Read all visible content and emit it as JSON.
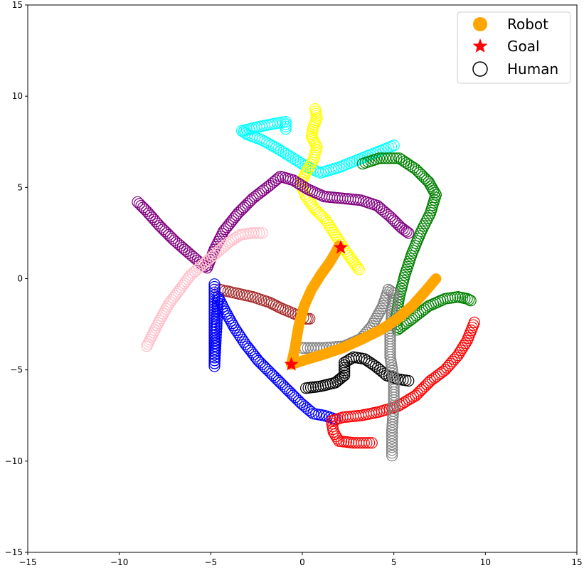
{
  "chart_data": {
    "type": "scatter",
    "xlim": [
      -15,
      15
    ],
    "ylim": [
      -15,
      15
    ],
    "xticks": [
      -15,
      -10,
      -5,
      0,
      5,
      10,
      15
    ],
    "yticks": [
      -15,
      -10,
      -5,
      0,
      5,
      10,
      15
    ],
    "tick_labels": [
      "−15",
      "−10",
      "−5",
      "0",
      "5",
      "10",
      "15"
    ],
    "grid": false,
    "legend": {
      "placement": "top-right",
      "entries": [
        {
          "label": "Robot",
          "marker": "filled-circle",
          "color": "#ffa500"
        },
        {
          "label": "Goal",
          "marker": "star",
          "color": "#ff0000"
        },
        {
          "label": "Human",
          "marker": "open-circle",
          "color": "#000000"
        }
      ]
    },
    "robot": {
      "name": "Robot",
      "color": "#ffa500",
      "path": [
        [
          7.3,
          0.0
        ],
        [
          6.8,
          -0.6
        ],
        [
          6.0,
          -1.5
        ],
        [
          5.2,
          -2.2
        ],
        [
          4.3,
          -2.8
        ],
        [
          3.3,
          -3.3
        ],
        [
          2.2,
          -3.8
        ],
        [
          1.0,
          -4.2
        ],
        [
          0.0,
          -4.5
        ],
        [
          -0.6,
          -4.7
        ],
        [
          -0.4,
          -3.8
        ],
        [
          -0.2,
          -2.6
        ],
        [
          0.1,
          -1.5
        ],
        [
          0.5,
          -0.6
        ],
        [
          1.0,
          0.2
        ],
        [
          1.5,
          0.9
        ],
        [
          1.8,
          1.4
        ],
        [
          2.0,
          1.8
        ]
      ]
    },
    "goals": [
      {
        "name": "Goal",
        "x": 2.1,
        "y": 1.7,
        "color": "#ff0000"
      },
      {
        "name": "Goal",
        "x": -0.6,
        "y": -4.7,
        "color": "#ff0000"
      }
    ],
    "humans": [
      {
        "color": "#00ffff",
        "path": [
          [
            5.0,
            7.3
          ],
          [
            4.0,
            6.9
          ],
          [
            3.0,
            6.5
          ],
          [
            2.0,
            6.1
          ],
          [
            1.0,
            5.8
          ],
          [
            0.3,
            6.1
          ],
          [
            -0.5,
            6.6
          ],
          [
            -1.3,
            7.1
          ],
          [
            -2.2,
            7.6
          ],
          [
            -3.0,
            7.9
          ],
          [
            -3.3,
            8.1
          ],
          [
            -2.5,
            8.3
          ],
          [
            -1.5,
            8.5
          ],
          [
            -0.9,
            8.6
          ],
          [
            -0.9,
            8.2
          ]
        ]
      },
      {
        "color": "#ffff00",
        "path": [
          [
            0.7,
            9.3
          ],
          [
            0.8,
            8.8
          ],
          [
            0.6,
            8.3
          ],
          [
            0.5,
            7.8
          ],
          [
            0.8,
            7.2
          ],
          [
            0.6,
            6.5
          ],
          [
            0.2,
            5.8
          ],
          [
            -0.1,
            5.2
          ],
          [
            0.2,
            4.5
          ],
          [
            0.7,
            3.8
          ],
          [
            1.3,
            3.2
          ],
          [
            1.8,
            2.4
          ],
          [
            2.3,
            1.6
          ],
          [
            2.8,
            0.9
          ],
          [
            3.1,
            0.5
          ]
        ]
      },
      {
        "color": "#008000",
        "path": [
          [
            3.3,
            6.3
          ],
          [
            4.2,
            6.6
          ],
          [
            5.3,
            6.6
          ],
          [
            6.2,
            6.0
          ],
          [
            6.9,
            5.3
          ],
          [
            7.3,
            4.6
          ],
          [
            7.0,
            3.6
          ],
          [
            6.5,
            2.6
          ],
          [
            6.0,
            1.4
          ],
          [
            5.6,
            0.2
          ],
          [
            5.3,
            -1.0
          ],
          [
            5.1,
            -2.2
          ],
          [
            5.2,
            -2.8
          ],
          [
            6.0,
            -2.2
          ],
          [
            6.9,
            -1.5
          ],
          [
            7.8,
            -1.1
          ],
          [
            8.5,
            -1.0
          ],
          [
            9.0,
            -1.1
          ],
          [
            9.2,
            -1.2
          ]
        ]
      },
      {
        "color": "#800080",
        "path": [
          [
            -9.0,
            4.2
          ],
          [
            -8.5,
            3.7
          ],
          [
            -7.8,
            2.9
          ],
          [
            -7.0,
            2.1
          ],
          [
            -6.2,
            1.4
          ],
          [
            -5.5,
            0.8
          ],
          [
            -5.2,
            0.6
          ],
          [
            -4.8,
            1.6
          ],
          [
            -4.3,
            2.6
          ],
          [
            -3.5,
            3.6
          ],
          [
            -2.7,
            4.4
          ],
          [
            -1.8,
            5.1
          ],
          [
            -1.2,
            5.6
          ],
          [
            -0.5,
            5.4
          ],
          [
            0.3,
            4.9
          ],
          [
            1.2,
            4.5
          ],
          [
            2.2,
            4.4
          ],
          [
            3.2,
            4.3
          ],
          [
            4.1,
            4.0
          ],
          [
            4.8,
            3.4
          ],
          [
            5.4,
            2.8
          ],
          [
            5.8,
            2.5
          ]
        ]
      },
      {
        "color": "#ffc0cb",
        "path": [
          [
            -2.2,
            2.5
          ],
          [
            -2.8,
            2.5
          ],
          [
            -3.4,
            2.4
          ],
          [
            -4.0,
            2.0
          ],
          [
            -4.7,
            1.4
          ],
          [
            -5.4,
            0.8
          ],
          [
            -6.1,
            0.2
          ],
          [
            -6.7,
            -0.6
          ],
          [
            -7.3,
            -1.4
          ],
          [
            -7.8,
            -2.3
          ],
          [
            -8.2,
            -3.1
          ],
          [
            -8.5,
            -3.7
          ]
        ]
      },
      {
        "color": "#a52a2a",
        "path": [
          [
            -4.5,
            -0.6
          ],
          [
            -3.6,
            -0.8
          ],
          [
            -2.7,
            -1.0
          ],
          [
            -1.8,
            -1.3
          ],
          [
            -1.2,
            -1.6
          ],
          [
            -0.5,
            -1.9
          ],
          [
            0.2,
            -2.2
          ],
          [
            0.4,
            -2.2
          ]
        ]
      },
      {
        "color": "#0000ff",
        "path": [
          [
            -4.8,
            -0.3
          ],
          [
            -4.8,
            -1.5
          ],
          [
            -4.8,
            -2.8
          ],
          [
            -4.8,
            -4.0
          ],
          [
            -4.8,
            -4.8
          ],
          [
            -4.6,
            -1.0
          ],
          [
            -4.2,
            -1.8
          ],
          [
            -3.7,
            -2.7
          ],
          [
            -3.1,
            -3.6
          ],
          [
            -2.4,
            -4.5
          ],
          [
            -1.6,
            -5.3
          ],
          [
            -0.8,
            -6.1
          ],
          [
            -0.1,
            -6.8
          ],
          [
            0.6,
            -7.4
          ],
          [
            1.2,
            -7.5
          ],
          [
            1.8,
            -7.7
          ]
        ]
      },
      {
        "color": "#ff0000",
        "path": [
          [
            9.4,
            -2.4
          ],
          [
            9.0,
            -3.4
          ],
          [
            8.5,
            -4.2
          ],
          [
            7.8,
            -5.0
          ],
          [
            7.0,
            -5.6
          ],
          [
            6.2,
            -6.4
          ],
          [
            5.2,
            -7.0
          ],
          [
            4.2,
            -7.3
          ],
          [
            3.2,
            -7.5
          ],
          [
            2.2,
            -7.6
          ],
          [
            1.6,
            -7.8
          ],
          [
            1.7,
            -8.4
          ],
          [
            2.0,
            -8.9
          ],
          [
            2.8,
            -9.0
          ],
          [
            3.8,
            -9.0
          ]
        ]
      },
      {
        "color": "#000000",
        "path": [
          [
            0.2,
            -6.0
          ],
          [
            1.0,
            -5.9
          ],
          [
            1.8,
            -5.7
          ],
          [
            2.3,
            -5.3
          ],
          [
            2.3,
            -4.6
          ],
          [
            2.8,
            -4.3
          ],
          [
            3.4,
            -4.4
          ],
          [
            4.0,
            -4.8
          ],
          [
            4.6,
            -5.3
          ],
          [
            5.2,
            -5.5
          ],
          [
            5.8,
            -5.6
          ]
        ]
      },
      {
        "color": "#808080",
        "path": [
          [
            4.9,
            -9.7
          ],
          [
            4.9,
            -8.3
          ],
          [
            5.0,
            -6.8
          ],
          [
            5.0,
            -5.5
          ],
          [
            4.8,
            -4.3
          ],
          [
            4.8,
            -3.0
          ],
          [
            4.9,
            -1.8
          ],
          [
            5.0,
            -0.8
          ],
          [
            4.7,
            -0.6
          ],
          [
            4.4,
            -1.5
          ],
          [
            3.8,
            -2.6
          ],
          [
            3.2,
            -3.3
          ],
          [
            2.3,
            -3.7
          ],
          [
            1.2,
            -3.8
          ],
          [
            0.0,
            -3.8
          ]
        ]
      }
    ]
  }
}
